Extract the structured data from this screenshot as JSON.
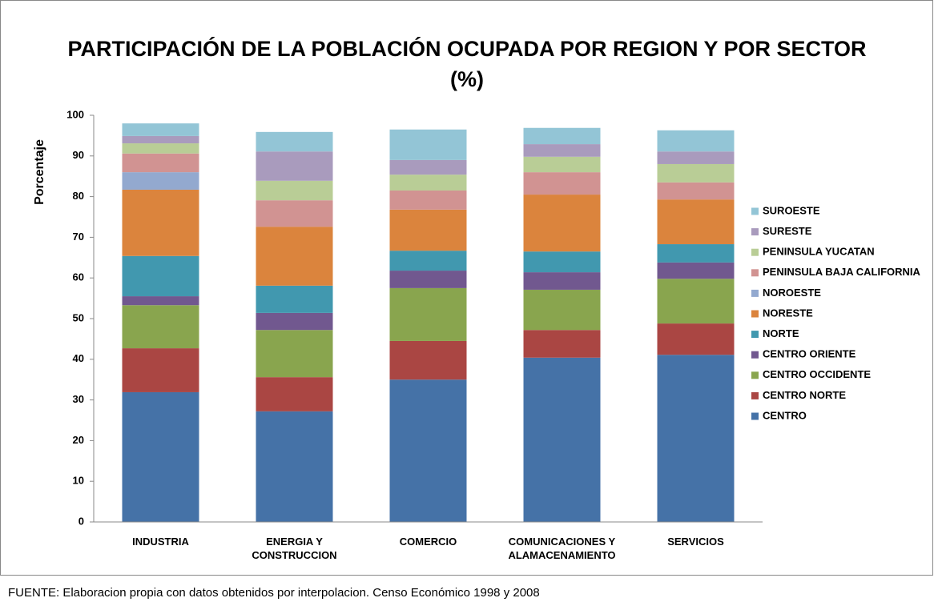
{
  "chart_data": {
    "type": "stacked_bar",
    "title": "PARTICIPACIÓN DE LA POBLACIÓN OCUPADA POR REGION Y POR SECTOR\n(%)",
    "y_label": "Porcentaje",
    "source": "FUENTE: Elaboracion propia con datos obtenidos por interpolacion. Censo Económico 1998 y 2008",
    "categories": [
      "INDUSTRIA",
      "ENERGIA Y\nCONSTRUCCION",
      "COMERCIO",
      "COMUNICACIONES Y\nALAMACENAMIENTO",
      "SERVICIOS"
    ],
    "ylim": [
      0,
      100
    ],
    "yticks": [
      0,
      10,
      20,
      30,
      40,
      50,
      60,
      70,
      80,
      90,
      100
    ],
    "legend": "right",
    "series": [
      {
        "name": "CENTRO",
        "color": "#4572a7",
        "values": [
          31.9,
          27.2,
          35.0,
          40.4,
          41.1
        ]
      },
      {
        "name": "CENTRO NORTE",
        "color": "#aa4643",
        "values": [
          10.8,
          8.4,
          9.5,
          6.8,
          7.7
        ]
      },
      {
        "name": "CENTRO OCCIDENTE",
        "color": "#89a54e",
        "values": [
          10.6,
          11.6,
          13.0,
          9.9,
          11.0
        ]
      },
      {
        "name": "CENTRO ORIENTE",
        "color": "#71588f",
        "values": [
          2.2,
          4.2,
          4.3,
          4.3,
          4.0
        ]
      },
      {
        "name": "NORTE",
        "color": "#4198af",
        "values": [
          9.9,
          6.7,
          4.9,
          5.1,
          4.5
        ]
      },
      {
        "name": "NORESTE",
        "color": "#db843d",
        "values": [
          16.3,
          14.5,
          10.1,
          14.0,
          11.0
        ]
      },
      {
        "name": "NOROESTE",
        "color": "#93a9cf",
        "values": [
          4.3,
          0,
          0,
          0,
          0
        ]
      },
      {
        "name": "PENINSULA BAJA CALIFORNIA",
        "color": "#d19392",
        "values": [
          4.6,
          6.5,
          4.7,
          5.5,
          4.2
        ]
      },
      {
        "name": "PENINSULA YUCATAN",
        "color": "#b9cd96",
        "values": [
          2.5,
          4.8,
          3.9,
          3.8,
          4.5
        ]
      },
      {
        "name": "SURESTE",
        "color": "#a99bbd",
        "values": [
          1.8,
          7.2,
          3.6,
          3.1,
          3.1
        ]
      },
      {
        "name": "SUROESTE",
        "color": "#93c5d6",
        "values": [
          3.1,
          4.8,
          7.5,
          4.0,
          5.2
        ]
      }
    ]
  }
}
